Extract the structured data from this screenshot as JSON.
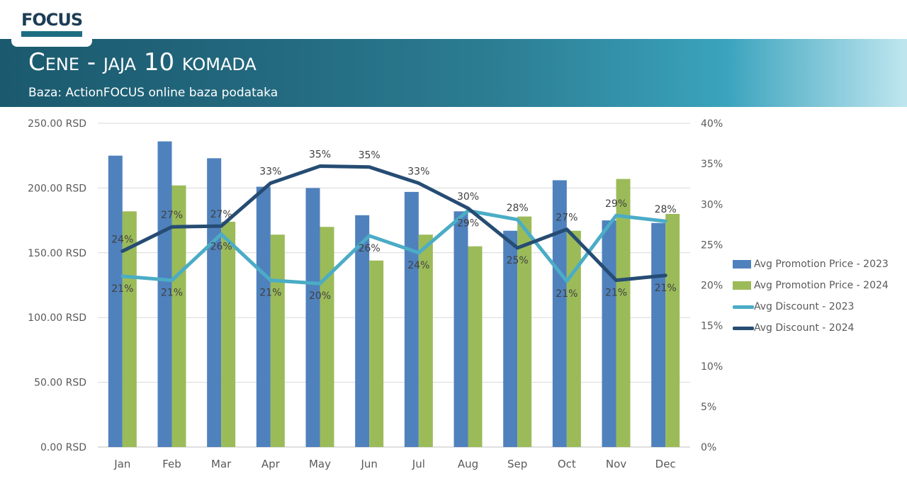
{
  "logo": {
    "text": "FOCUS"
  },
  "header": {
    "title": "Cene  - jaja 10 komada",
    "subtitle": "Baza: ActionFOCUS online baza podataka"
  },
  "colors": {
    "promo_2023": "#4f81bd",
    "promo_2024": "#9bbb59",
    "disc_2023": "#4bacc6",
    "disc_2024": "#264c73",
    "axis_text": "#595959",
    "grid": "#d9d9d9"
  },
  "chart_data": {
    "type": "bar",
    "categories": [
      "Jan",
      "Feb",
      "Mar",
      "Apr",
      "May",
      "Jun",
      "Jul",
      "Aug",
      "Sep",
      "Oct",
      "Nov",
      "Dec"
    ],
    "y_left": {
      "ylim": [
        0,
        250
      ],
      "ticks": [
        "0.00 RSD",
        "50.00 RSD",
        "100.00 RSD",
        "150.00 RSD",
        "200.00 RSD",
        "250.00 RSD"
      ]
    },
    "y_right": {
      "ylim": [
        0,
        0.4
      ],
      "ticks": [
        "0%",
        "5%",
        "10%",
        "15%",
        "20%",
        "25%",
        "30%",
        "35%",
        "40%"
      ]
    },
    "grid": true,
    "legend": "right",
    "series": [
      {
        "name": "Avg Promotion Price - 2023",
        "type": "bar",
        "axis": "left",
        "values": [
          225,
          236,
          223,
          201,
          200,
          179,
          197,
          182,
          167,
          206,
          175,
          173
        ]
      },
      {
        "name": "Avg Promotion Price - 2024",
        "type": "bar",
        "axis": "left",
        "values": [
          182,
          202,
          174,
          164,
          170,
          144,
          164,
          155,
          178,
          167,
          207,
          180
        ]
      },
      {
        "name": "Avg Discount - 2023",
        "type": "line",
        "axis": "right",
        "values": [
          0.211,
          0.206,
          0.263,
          0.206,
          0.202,
          0.261,
          0.24,
          0.292,
          0.281,
          0.205,
          0.286,
          0.279
        ],
        "labels": [
          "21%",
          "21%",
          "26%",
          "21%",
          "20%",
          "26%",
          "24%",
          "29%",
          "28%",
          "21%",
          "29%",
          "28%"
        ]
      },
      {
        "name": "Avg Discount - 2024",
        "type": "line",
        "axis": "right",
        "values": [
          0.242,
          0.272,
          0.273,
          0.326,
          0.347,
          0.346,
          0.326,
          0.295,
          0.246,
          0.269,
          0.206,
          0.212
        ],
        "labels": [
          "24%",
          "27%",
          "27%",
          "33%",
          "35%",
          "35%",
          "33%",
          "30%",
          "25%",
          "27%",
          "21%",
          "21%"
        ]
      }
    ]
  }
}
